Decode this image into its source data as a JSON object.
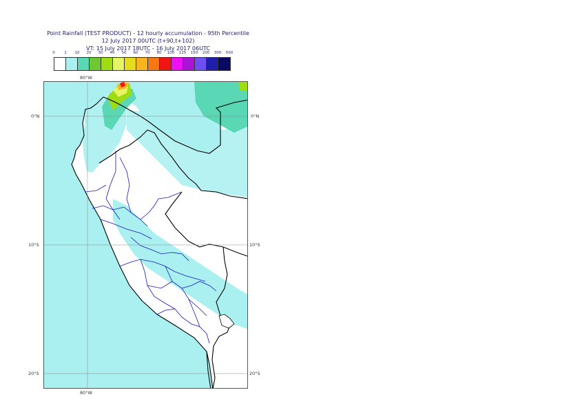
{
  "title": {
    "line1": "Point Rainfall (TEST PRODUCT) - 12 hourly accumulation - 95th Percentile",
    "line2": "12 July 2017 00UTC (t+90,t+102)",
    "line3": "VT: 15 July 2017 18UTC - 16 July 2017 06UTC"
  },
  "legend": {
    "ticks": [
      "0",
      "1",
      "10",
      "20",
      "30",
      "40",
      "50",
      "60",
      "70",
      "80",
      "100",
      "125",
      "150",
      "200",
      "300",
      "500"
    ],
    "colors": [
      "#ffffff",
      "#aaf0f0",
      "#5ad7b4",
      "#6ec832",
      "#a0dc14",
      "#e6f564",
      "#e6dc1e",
      "#fab41e",
      "#f57814",
      "#f01414",
      "#f00ff5",
      "#aa14d7",
      "#6e50f0",
      "#1e1eaa",
      "#0a0a64"
    ]
  },
  "map": {
    "ocean_color": "#aaf0f0",
    "land_color": "#ffffff",
    "lon_labels": {
      "top": "80°W",
      "bottom": "80°W"
    },
    "lat_labels": {
      "left": [
        "0°N",
        "10°S",
        "20°S"
      ],
      "right": [
        "0°N",
        "10°S",
        "20°S"
      ]
    }
  }
}
